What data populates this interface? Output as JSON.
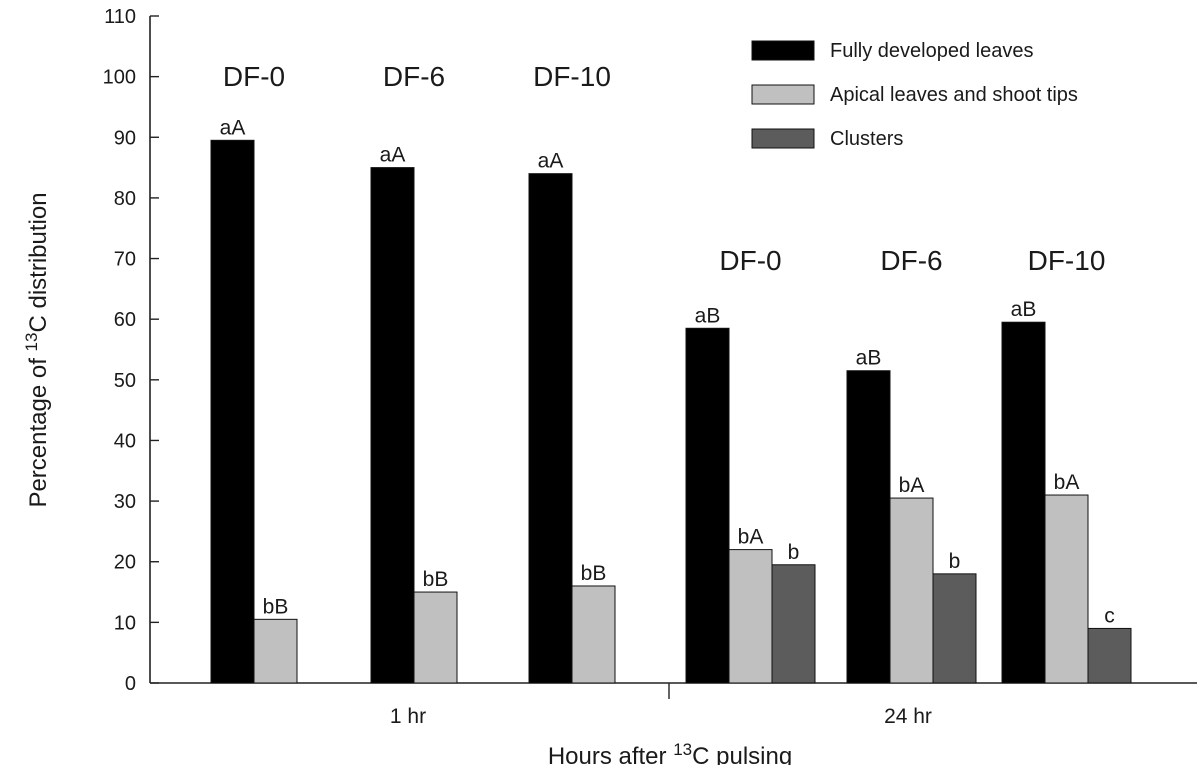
{
  "chart_data": {
    "type": "bar",
    "ylabel_prefix": "Percentage of ",
    "ylabel_sup": "13",
    "ylabel_suffix": "C distribution",
    "xlabel_prefix": "Hours after ",
    "xlabel_sup": "13",
    "xlabel_suffix": "C pulsing",
    "ylim": [
      0,
      110
    ],
    "yticks": [
      "0",
      "10",
      "20",
      "30",
      "40",
      "50",
      "60",
      "70",
      "80",
      "90",
      "100",
      "110"
    ],
    "grid": false,
    "legend_position": "top-right",
    "time_groups": [
      {
        "label": "1 hr"
      },
      {
        "label": "24 hr"
      }
    ],
    "series": [
      {
        "name": "Fully developed leaves",
        "color": "#000000"
      },
      {
        "name": "Apical leaves and shoot tips",
        "color": "#c0c0c0"
      },
      {
        "name": "Clusters",
        "color": "#5c5c5c"
      }
    ],
    "groups": [
      {
        "time": "1 hr",
        "label": "DF-0",
        "values": [
          89.5,
          10.5,
          null
        ],
        "annotations": [
          "aA",
          "bB",
          ""
        ]
      },
      {
        "time": "1 hr",
        "label": "DF-6",
        "values": [
          85,
          15,
          null
        ],
        "annotations": [
          "aA",
          "bB",
          ""
        ]
      },
      {
        "time": "1 hr",
        "label": "DF-10",
        "values": [
          84,
          16,
          null
        ],
        "annotations": [
          "aA",
          "bB",
          ""
        ]
      },
      {
        "time": "24 hr",
        "label": "DF-0",
        "values": [
          58.5,
          22,
          19.5
        ],
        "annotations": [
          "aB",
          "bA",
          "b"
        ]
      },
      {
        "time": "24 hr",
        "label": "DF-6",
        "values": [
          51.5,
          30.5,
          18
        ],
        "annotations": [
          "aB",
          "bA",
          "b"
        ]
      },
      {
        "time": "24 hr",
        "label": "DF-10",
        "values": [
          59.5,
          31,
          9
        ],
        "annotations": [
          "aB",
          "bA",
          "c"
        ]
      }
    ]
  }
}
